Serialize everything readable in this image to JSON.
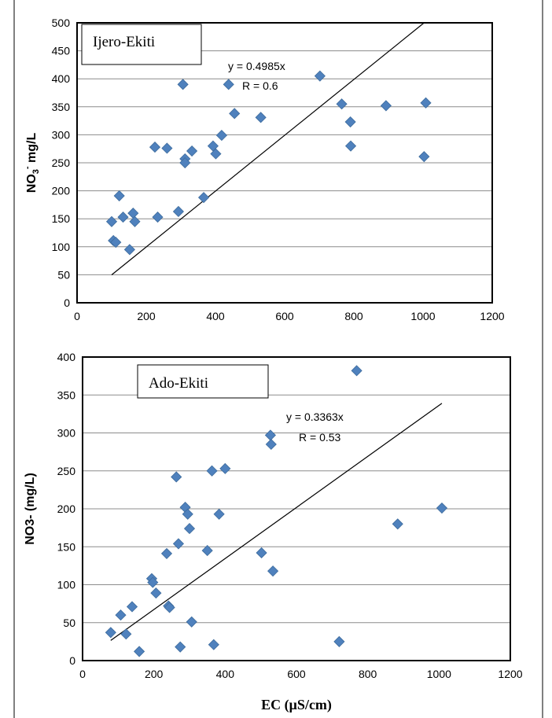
{
  "chart_data": [
    {
      "type": "scatter",
      "panel_label": "Ijero-Ekiti",
      "xlabel": "",
      "ylabel_main": "NO",
      "ylabel_sub": "3",
      "ylabel_sup": "-",
      "ylabel_unit": " mg/L",
      "xlim": [
        0,
        1200
      ],
      "ylim": [
        0,
        500
      ],
      "xticks": [
        "0",
        "200",
        "400",
        "600",
        "800",
        "1000",
        "1200"
      ],
      "yticks": [
        "0",
        "50",
        "100",
        "150",
        "200",
        "250",
        "300",
        "350",
        "400",
        "450",
        "500"
      ],
      "grid": true,
      "trendline": {
        "slope": 0.4985,
        "x_range": [
          100,
          1003
        ]
      },
      "equation": "y = 0.4985x",
      "r_label": "R = 0.6",
      "marker_color": "#4F81BD",
      "points": [
        [
          100,
          145
        ],
        [
          105,
          111
        ],
        [
          112,
          108
        ],
        [
          122,
          191
        ],
        [
          133,
          153
        ],
        [
          152,
          95
        ],
        [
          162,
          160
        ],
        [
          167,
          145
        ],
        [
          225,
          278
        ],
        [
          233,
          153
        ],
        [
          260,
          276
        ],
        [
          293,
          163
        ],
        [
          306,
          390
        ],
        [
          312,
          257
        ],
        [
          312,
          250
        ],
        [
          332,
          271
        ],
        [
          366,
          188
        ],
        [
          393,
          280
        ],
        [
          401,
          266
        ],
        [
          418,
          299
        ],
        [
          438,
          390
        ],
        [
          455,
          338
        ],
        [
          531,
          331
        ],
        [
          702,
          405
        ],
        [
          765,
          355
        ],
        [
          790,
          323
        ],
        [
          791,
          280
        ],
        [
          893,
          352
        ],
        [
          1003,
          261
        ],
        [
          1008,
          357
        ]
      ]
    },
    {
      "type": "scatter",
      "panel_label": "Ado-Ekiti",
      "xlabel": "EC (µS/cm)",
      "ylabel": "NO3- (mg/L)",
      "xlim": [
        0,
        1200
      ],
      "ylim": [
        0,
        400
      ],
      "xticks": [
        "0",
        "200",
        "400",
        "600",
        "800",
        "1000",
        "1200"
      ],
      "yticks": [
        "0",
        "50",
        "100",
        "150",
        "200",
        "250",
        "300",
        "350",
        "400"
      ],
      "grid": true,
      "trendline": {
        "slope": 0.3363,
        "x_range": [
          79,
          1008
        ]
      },
      "equation": "y = 0.3363x",
      "r_label": "R = 0.53",
      "marker_color": "#4F81BD",
      "points": [
        [
          79,
          37
        ],
        [
          107,
          60
        ],
        [
          122,
          35
        ],
        [
          139,
          71
        ],
        [
          159,
          12
        ],
        [
          194,
          108
        ],
        [
          197,
          103
        ],
        [
          206,
          89
        ],
        [
          236,
          141
        ],
        [
          241,
          72
        ],
        [
          244,
          70
        ],
        [
          263,
          242
        ],
        [
          269,
          154
        ],
        [
          274,
          18
        ],
        [
          288,
          202
        ],
        [
          295,
          193
        ],
        [
          300,
          174
        ],
        [
          306,
          51
        ],
        [
          350,
          145
        ],
        [
          363,
          250
        ],
        [
          368,
          21
        ],
        [
          383,
          193
        ],
        [
          400,
          253
        ],
        [
          502,
          142
        ],
        [
          527,
          297
        ],
        [
          529,
          285
        ],
        [
          534,
          118
        ],
        [
          720,
          25
        ],
        [
          769,
          382
        ],
        [
          884,
          180
        ],
        [
          1008,
          201
        ]
      ]
    }
  ]
}
